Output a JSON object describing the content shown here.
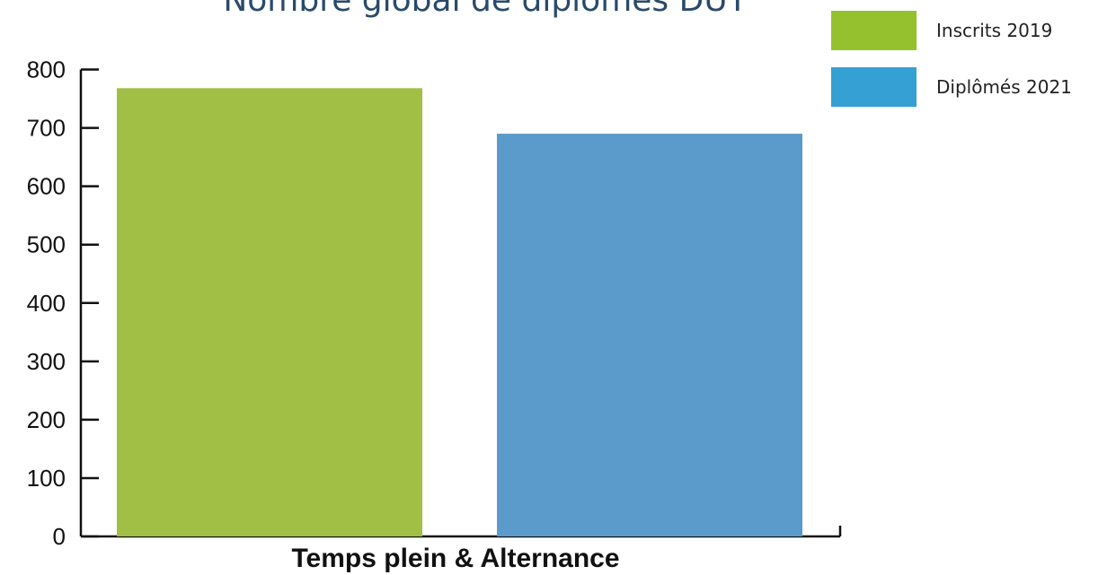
{
  "chart_data": {
    "type": "bar",
    "title": "Nombre global de diplômes DUT",
    "xlabel": "",
    "ylabel": "",
    "categories": [
      "Temps plein & Alternance"
    ],
    "series": [
      {
        "name": "Inscrits 2019",
        "values": [
          768
        ],
        "color": "#a0bf44",
        "legend_color": "#95c12e"
      },
      {
        "name": "Diplômés 2021",
        "values": [
          690
        ],
        "color": "#5a9bcb",
        "legend_color": "#35a0d3"
      }
    ],
    "ylim": [
      0,
      800
    ],
    "yticks": [
      0,
      100,
      200,
      300,
      400,
      500,
      600,
      700,
      800
    ],
    "grid": false,
    "legend_position": "top-right"
  }
}
